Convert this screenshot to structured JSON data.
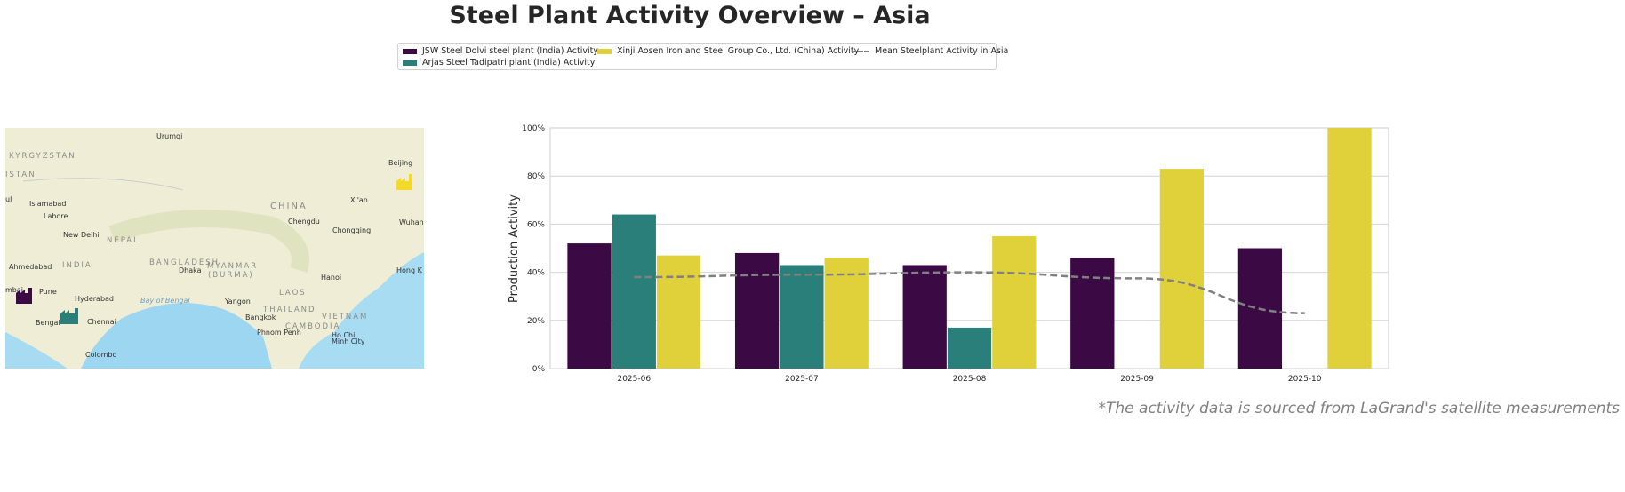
{
  "title": "Steel Plant Activity Overview – Asia",
  "footnote": "*The activity data is sourced from LaGrand's satellite measurements",
  "map": {
    "labels": [
      "Urumqi",
      "KYRGYZSTAN",
      "ISTAN",
      "ul",
      "Islamabad",
      "Lahore",
      "New Delhi",
      "NEPAL",
      "INDIA",
      "Ahmedabad",
      "mbai",
      "Pune",
      "Hyderabad",
      "Bengal",
      "Chennai",
      "Colombo",
      "Bay of Bengal",
      "BANGLADESH",
      "Dhaka",
      "MYANMAR",
      "(BURMA)",
      "Yangon",
      "THAILAND",
      "Bangkok",
      "LAOS",
      "Hanoi",
      "VIETNAM",
      "CAMBODIA",
      "Phnom Penh",
      "Ho Chi",
      "Minh City",
      "CHINA",
      "Chengdu",
      "Chongqing",
      "Xi'an",
      "Wuhan",
      "Beijing",
      "Hong K"
    ],
    "markers": [
      {
        "plant": "JSW Steel Dolvi steel plant (India)",
        "icon": "factory-icon",
        "color": "#3b0a45"
      },
      {
        "plant": "Arjas Steel Tadipatri plant (India)",
        "icon": "factory-icon",
        "color": "#2a7f7a"
      },
      {
        "plant": "Xinji Aosen Iron and Steel Group Co., Ltd. (China)",
        "icon": "factory-icon",
        "color": "#f2d92a"
      }
    ]
  },
  "chart_data": {
    "type": "bar",
    "categories": [
      "2025-06",
      "2025-07",
      "2025-08",
      "2025-09",
      "2025-10"
    ],
    "ylabel": "Production Activity",
    "xlabel": "",
    "ylim": [
      0,
      100
    ],
    "yticks": [
      "0%",
      "20%",
      "40%",
      "60%",
      "80%",
      "100%"
    ],
    "grid": true,
    "legend_placement": "top-center",
    "series": [
      {
        "name": "JSW Steel Dolvi steel plant (India) Activity",
        "color": "#3b0a45",
        "values": [
          52,
          48,
          43,
          46,
          50
        ]
      },
      {
        "name": "Arjas Steel Tadipatri plant (India) Activity",
        "color": "#2a7f7a",
        "values": [
          64,
          43,
          17,
          null,
          null
        ]
      },
      {
        "name": "Xinji Aosen Iron and Steel Group Co., Ltd. (China) Activity",
        "color": "#e0d13a",
        "values": [
          47,
          46,
          55,
          83,
          100
        ]
      }
    ],
    "line": {
      "name": "Mean Steelplant Activity in Asia",
      "type": "line",
      "style": "dashed",
      "color": "#808080",
      "values": [
        38,
        39,
        40,
        37.5,
        23
      ]
    }
  }
}
